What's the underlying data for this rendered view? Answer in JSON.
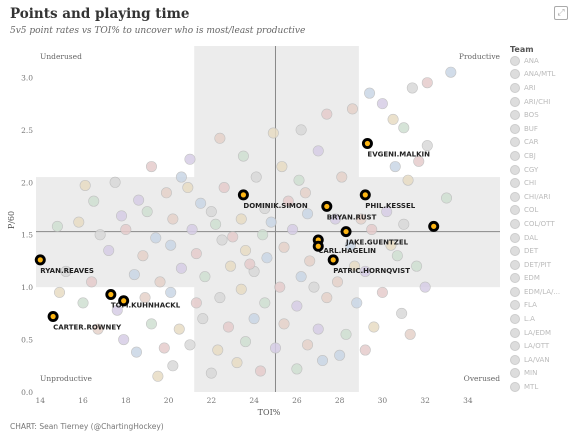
{
  "header": {
    "title": "Points and playing time",
    "subtitle": "5v5 point rates vs TOI% to uncover who is most/least productive"
  },
  "credit": "CHART: Sean Tierney (@ChartingHockey)",
  "legend": {
    "title": "Team",
    "items": [
      "ANA",
      "ANA/MTL",
      "ARI",
      "ARI/CHI",
      "BOS",
      "BUF",
      "CAR",
      "CBJ",
      "CGY",
      "CHI",
      "CHI/ARI",
      "COL",
      "COL/OTT",
      "DAL",
      "DET",
      "DET/PIT",
      "EDM",
      "EDM/LA/...",
      "FLA",
      "L.A",
      "LA/EDM",
      "LA/OTT",
      "LA/VAN",
      "MIN",
      "MTL"
    ]
  },
  "chart_data": {
    "type": "scatter",
    "xlabel": "TOI%",
    "ylabel": "P/60",
    "xlim": [
      13.8,
      35.5
    ],
    "ylim": [
      0,
      3.3
    ],
    "xticks": [
      "14",
      "16",
      "18",
      "20",
      "22",
      "24",
      "26",
      "28",
      "30",
      "32",
      "34"
    ],
    "yticks": [
      "0.0",
      "0.5",
      "1.0",
      "1.5",
      "2.0",
      "2.5",
      "3.0"
    ],
    "grid": false,
    "legend_position": "right",
    "reference_lines": {
      "x": 25.0,
      "y": 1.53
    },
    "quadrants": {
      "top_left": "Underused",
      "top_right": "Productive",
      "bottom_left": "Unproductive",
      "bottom_right": "Overused"
    },
    "highlight_color": "#000000",
    "highlight_accent": "#FCB514",
    "background_color": "#cccccc",
    "highlighted_players": [
      {
        "name": "EVGENI.MALKIN",
        "x": 29.3,
        "y": 2.37
      },
      {
        "name": "PHIL.KESSEL",
        "x": 29.2,
        "y": 1.88
      },
      {
        "name": "DOMINIK.SIMON",
        "x": 23.5,
        "y": 1.88
      },
      {
        "name": "BRYAN.RUST",
        "x": 27.4,
        "y": 1.77
      },
      {
        "name": "JAKE.GUENTZEL",
        "x": 28.3,
        "y": 1.53
      },
      {
        "name": "CARL.HAGELIN",
        "x": 27.0,
        "y": 1.45
      },
      {
        "name": "PATRIC.HORNQVIST",
        "x": 27.7,
        "y": 1.26
      },
      {
        "name": "RYAN.REAVES",
        "x": 14.0,
        "y": 1.26
      },
      {
        "name": "TOM.KUHNHACKL",
        "x": 17.3,
        "y": 0.93
      },
      {
        "name": "CARTER.ROWNEY",
        "x": 14.6,
        "y": 0.72
      },
      {
        "name": "",
        "x": 17.9,
        "y": 0.87
      },
      {
        "name": "",
        "x": 32.4,
        "y": 1.58
      },
      {
        "name": "",
        "x": 27.0,
        "y": 1.39
      }
    ],
    "background_points": [
      {
        "x": 33.2,
        "y": 3.05
      },
      {
        "x": 32.1,
        "y": 2.95
      },
      {
        "x": 31.4,
        "y": 2.9
      },
      {
        "x": 30.5,
        "y": 2.6
      },
      {
        "x": 31.0,
        "y": 2.52
      },
      {
        "x": 30.0,
        "y": 2.75
      },
      {
        "x": 28.6,
        "y": 2.7
      },
      {
        "x": 29.4,
        "y": 2.85
      },
      {
        "x": 27.4,
        "y": 2.65
      },
      {
        "x": 26.2,
        "y": 2.5
      },
      {
        "x": 24.9,
        "y": 2.47
      },
      {
        "x": 23.5,
        "y": 2.25
      },
      {
        "x": 21.0,
        "y": 2.22
      },
      {
        "x": 22.4,
        "y": 2.42
      },
      {
        "x": 20.6,
        "y": 2.05
      },
      {
        "x": 19.2,
        "y": 2.15
      },
      {
        "x": 17.5,
        "y": 2.0
      },
      {
        "x": 16.1,
        "y": 1.97
      },
      {
        "x": 16.5,
        "y": 1.82
      },
      {
        "x": 18.6,
        "y": 1.83
      },
      {
        "x": 19.9,
        "y": 1.9
      },
      {
        "x": 21.5,
        "y": 1.8
      },
      {
        "x": 22.6,
        "y": 1.95
      },
      {
        "x": 24.1,
        "y": 2.05
      },
      {
        "x": 25.3,
        "y": 2.15
      },
      {
        "x": 26.1,
        "y": 2.02
      },
      {
        "x": 27.0,
        "y": 2.3
      },
      {
        "x": 28.1,
        "y": 2.05
      },
      {
        "x": 30.6,
        "y": 2.15
      },
      {
        "x": 31.7,
        "y": 2.2
      },
      {
        "x": 32.1,
        "y": 2.35
      },
      {
        "x": 31.2,
        "y": 2.02
      },
      {
        "x": 33.0,
        "y": 1.85
      },
      {
        "x": 30.2,
        "y": 1.72
      },
      {
        "x": 29.0,
        "y": 1.65
      },
      {
        "x": 26.5,
        "y": 1.7
      },
      {
        "x": 25.6,
        "y": 1.82
      },
      {
        "x": 24.5,
        "y": 1.75
      },
      {
        "x": 23.4,
        "y": 1.65
      },
      {
        "x": 22.2,
        "y": 1.6
      },
      {
        "x": 21.1,
        "y": 1.55
      },
      {
        "x": 20.2,
        "y": 1.65
      },
      {
        "x": 19.4,
        "y": 1.47
      },
      {
        "x": 18.0,
        "y": 1.55
      },
      {
        "x": 16.8,
        "y": 1.5
      },
      {
        "x": 15.8,
        "y": 1.62
      },
      {
        "x": 14.8,
        "y": 1.58
      },
      {
        "x": 17.2,
        "y": 1.35
      },
      {
        "x": 18.8,
        "y": 1.3
      },
      {
        "x": 20.1,
        "y": 1.4
      },
      {
        "x": 21.3,
        "y": 1.32
      },
      {
        "x": 22.5,
        "y": 1.45
      },
      {
        "x": 23.6,
        "y": 1.35
      },
      {
        "x": 24.4,
        "y": 1.5
      },
      {
        "x": 25.8,
        "y": 1.55
      },
      {
        "x": 26.6,
        "y": 1.25
      },
      {
        "x": 28.5,
        "y": 1.4
      },
      {
        "x": 29.5,
        "y": 1.55
      },
      {
        "x": 31.0,
        "y": 1.6
      },
      {
        "x": 30.4,
        "y": 1.4
      },
      {
        "x": 31.6,
        "y": 1.2
      },
      {
        "x": 29.2,
        "y": 1.15
      },
      {
        "x": 27.9,
        "y": 1.05
      },
      {
        "x": 26.2,
        "y": 1.1
      },
      {
        "x": 25.2,
        "y": 1.0
      },
      {
        "x": 24.0,
        "y": 1.15
      },
      {
        "x": 22.9,
        "y": 1.2
      },
      {
        "x": 21.7,
        "y": 1.1
      },
      {
        "x": 20.6,
        "y": 1.18
      },
      {
        "x": 19.6,
        "y": 1.05
      },
      {
        "x": 18.4,
        "y": 1.12
      },
      {
        "x": 16.4,
        "y": 1.05
      },
      {
        "x": 15.2,
        "y": 1.15
      },
      {
        "x": 14.9,
        "y": 0.95
      },
      {
        "x": 16.0,
        "y": 0.85
      },
      {
        "x": 17.6,
        "y": 0.78
      },
      {
        "x": 18.9,
        "y": 0.9
      },
      {
        "x": 20.1,
        "y": 0.95
      },
      {
        "x": 21.3,
        "y": 0.85
      },
      {
        "x": 22.4,
        "y": 0.9
      },
      {
        "x": 23.4,
        "y": 0.98
      },
      {
        "x": 24.5,
        "y": 0.85
      },
      {
        "x": 26.0,
        "y": 0.82
      },
      {
        "x": 27.4,
        "y": 0.9
      },
      {
        "x": 28.8,
        "y": 0.85
      },
      {
        "x": 30.0,
        "y": 0.95
      },
      {
        "x": 30.9,
        "y": 0.75
      },
      {
        "x": 29.6,
        "y": 0.62
      },
      {
        "x": 28.3,
        "y": 0.55
      },
      {
        "x": 27.0,
        "y": 0.6
      },
      {
        "x": 25.4,
        "y": 0.65
      },
      {
        "x": 24.0,
        "y": 0.7
      },
      {
        "x": 22.8,
        "y": 0.62
      },
      {
        "x": 21.6,
        "y": 0.7
      },
      {
        "x": 20.5,
        "y": 0.6
      },
      {
        "x": 19.2,
        "y": 0.65
      },
      {
        "x": 17.9,
        "y": 0.5
      },
      {
        "x": 16.7,
        "y": 0.6
      },
      {
        "x": 18.5,
        "y": 0.38
      },
      {
        "x": 19.8,
        "y": 0.42
      },
      {
        "x": 21.0,
        "y": 0.45
      },
      {
        "x": 22.3,
        "y": 0.4
      },
      {
        "x": 23.6,
        "y": 0.48
      },
      {
        "x": 25.0,
        "y": 0.42
      },
      {
        "x": 26.5,
        "y": 0.45
      },
      {
        "x": 28.0,
        "y": 0.35
      },
      {
        "x": 29.2,
        "y": 0.4
      },
      {
        "x": 20.2,
        "y": 0.25
      },
      {
        "x": 23.2,
        "y": 0.28
      },
      {
        "x": 26.0,
        "y": 0.22
      },
      {
        "x": 27.8,
        "y": 1.65
      },
      {
        "x": 26.4,
        "y": 1.9
      },
      {
        "x": 24.8,
        "y": 1.62
      },
      {
        "x": 23.0,
        "y": 1.48
      },
      {
        "x": 22.0,
        "y": 1.72
      },
      {
        "x": 20.9,
        "y": 1.95
      },
      {
        "x": 19.0,
        "y": 1.72
      },
      {
        "x": 17.8,
        "y": 1.68
      },
      {
        "x": 25.4,
        "y": 1.38
      },
      {
        "x": 24.6,
        "y": 1.28
      },
      {
        "x": 23.8,
        "y": 1.22
      },
      {
        "x": 26.8,
        "y": 1.0
      },
      {
        "x": 28.7,
        "y": 1.2
      },
      {
        "x": 30.7,
        "y": 1.3
      },
      {
        "x": 32.0,
        "y": 1.0
      },
      {
        "x": 31.3,
        "y": 0.55
      },
      {
        "x": 27.2,
        "y": 0.3
      },
      {
        "x": 24.3,
        "y": 0.2
      },
      {
        "x": 22.0,
        "y": 0.18
      },
      {
        "x": 19.5,
        "y": 0.15
      }
    ]
  }
}
